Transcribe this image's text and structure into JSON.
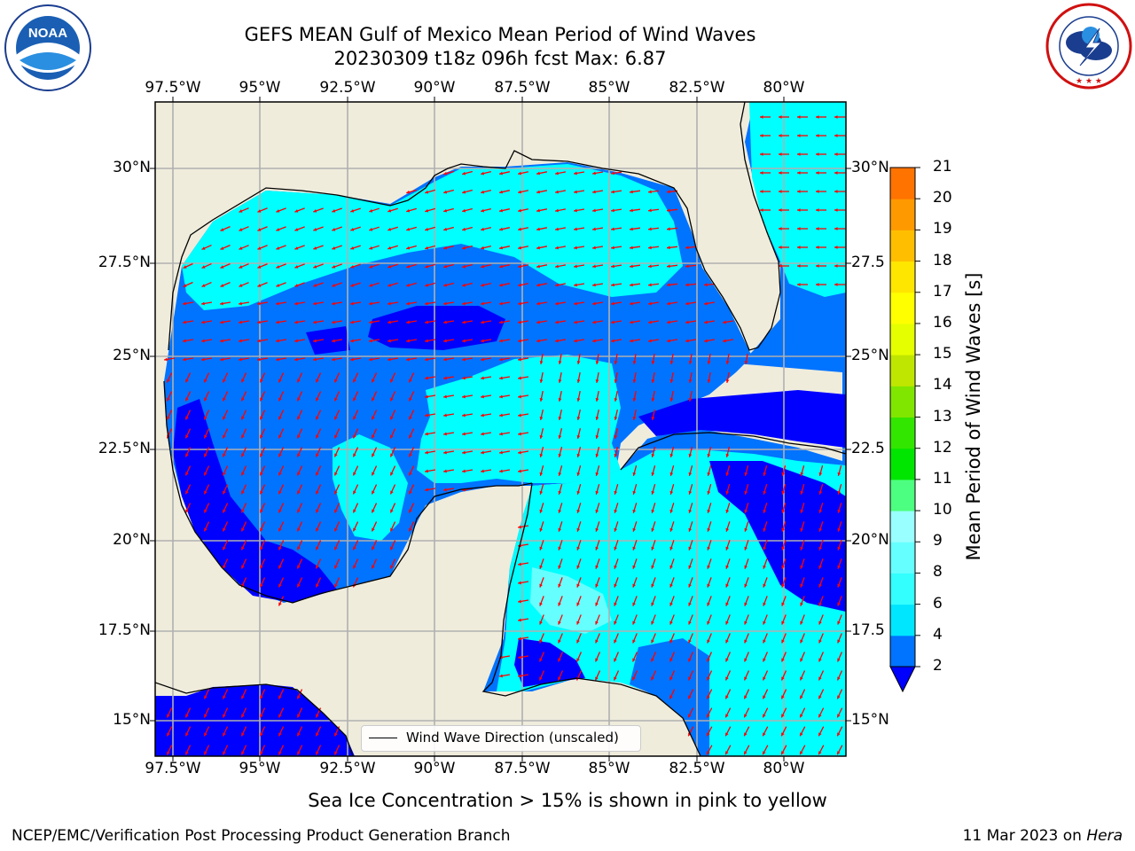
{
  "title": {
    "line1": "GEFS MEAN Gulf of Mexico Mean Period of Wind Waves",
    "line2": "20230309 t18z 096h fcst   Max: 6.87"
  },
  "logos": {
    "left": "NOAA",
    "left_ring_text": "NATIONAL OCEANIC AND ATMOSPHERIC ADMINISTRATION · U.S. DEPARTMENT OF COMMERCE",
    "right_ring_text": "NATIONAL WEATHER SERVICE"
  },
  "axes": {
    "lon_ticks": [
      "97.5°W",
      "95°W",
      "92.5°W",
      "90°W",
      "87.5°W",
      "85°W",
      "82.5°W",
      "80°W"
    ],
    "lat_ticks_left": [
      "30°N",
      "27.5°N",
      "25°N",
      "22.5°N",
      "20°N",
      "17.5°N",
      "15°N"
    ],
    "lat_ticks_right": [
      "30°N",
      "27.5",
      "25°N",
      "22.5",
      "20°N",
      "17.5",
      "15°N"
    ]
  },
  "legend": {
    "label": "Wind Wave Direction (unscaled)"
  },
  "colorbar": {
    "label": "Mean Period of Wind Waves [s]",
    "ticks": [
      "2",
      "4",
      "6",
      "8",
      "9",
      "10",
      "11",
      "12",
      "13",
      "14",
      "15",
      "16",
      "17",
      "18",
      "19",
      "20",
      "21"
    ],
    "colors": [
      "#0073ff",
      "#00e6ff",
      "#33ffff",
      "#66ffff",
      "#99ffff",
      "#4dff80",
      "#00e600",
      "#33e600",
      "#80e600",
      "#bfe600",
      "#e6ff00",
      "#ffff00",
      "#ffe600",
      "#ffbf00",
      "#ff9900",
      "#ff7300",
      "#ff4d00",
      "#ff2600",
      "#ff0000"
    ],
    "under_color": "#0000ff"
  },
  "colors": {
    "land": "#efecdc",
    "ocean_low": "#0000ff",
    "ocean_mid": "#0073ff",
    "ocean_high": "#00ffff",
    "ocean_light": "#66ffff",
    "arrow": "#ff0000",
    "grid": "#b0b0b0"
  },
  "footer": {
    "sea_ice_note": "Sea Ice Concentration > 15% is shown in pink to yellow",
    "branch": "NCEP/EMC/Verification Post Processing Product Generation Branch",
    "date": "11 Mar 2023 on",
    "machine": "Hera"
  }
}
